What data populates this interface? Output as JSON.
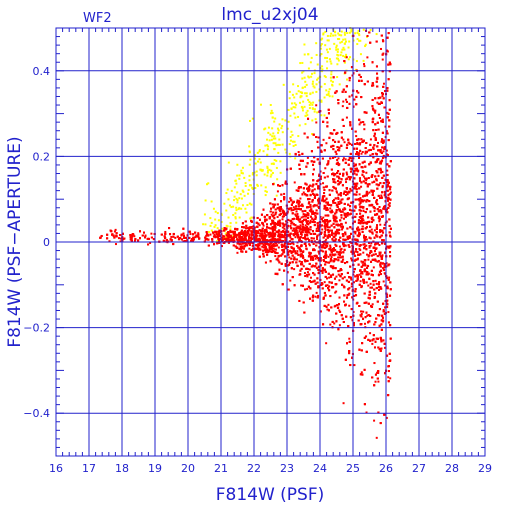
{
  "chart_data": {
    "type": "scatter",
    "title": "lmc_u2xj04",
    "panel_label": "WF2",
    "xlabel": "F814W (PSF)",
    "ylabel": "F814W (PSF−APERTURE)",
    "xlim": [
      16,
      29
    ],
    "ylim": [
      -0.5,
      0.5
    ],
    "x_ticks": [
      16,
      17,
      18,
      19,
      20,
      21,
      22,
      23,
      24,
      25,
      26,
      27,
      28,
      29
    ],
    "y_ticks": [
      -0.4,
      -0.2,
      0,
      0.2,
      0.4
    ],
    "y_tick_labels": [
      "−0.4",
      "−0.2",
      "0",
      "0.2",
      "0.4"
    ],
    "grid": true,
    "colors": {
      "axes": "#2222cc",
      "grid": "#2222cc",
      "primary_points": "#ff0000",
      "secondary_points": "#ffff00"
    },
    "series": [
      {
        "color": "#ff0000",
        "description_of_distribution": "dense cloud centered on y≈0, width growing with magnitude; cut off near x≈26.1",
        "x_range": [
          17.3,
          26.2
        ],
        "y_range": [
          -0.47,
          0.5
        ]
      },
      {
        "color": "#ffff00",
        "description_of_distribution": "sparse upper branch rising from y≈0 at x≈20.5 to y≈0.5 at x≈24",
        "x_range": [
          20.3,
          26.5
        ],
        "y_range": [
          0.0,
          0.5
        ]
      }
    ]
  }
}
